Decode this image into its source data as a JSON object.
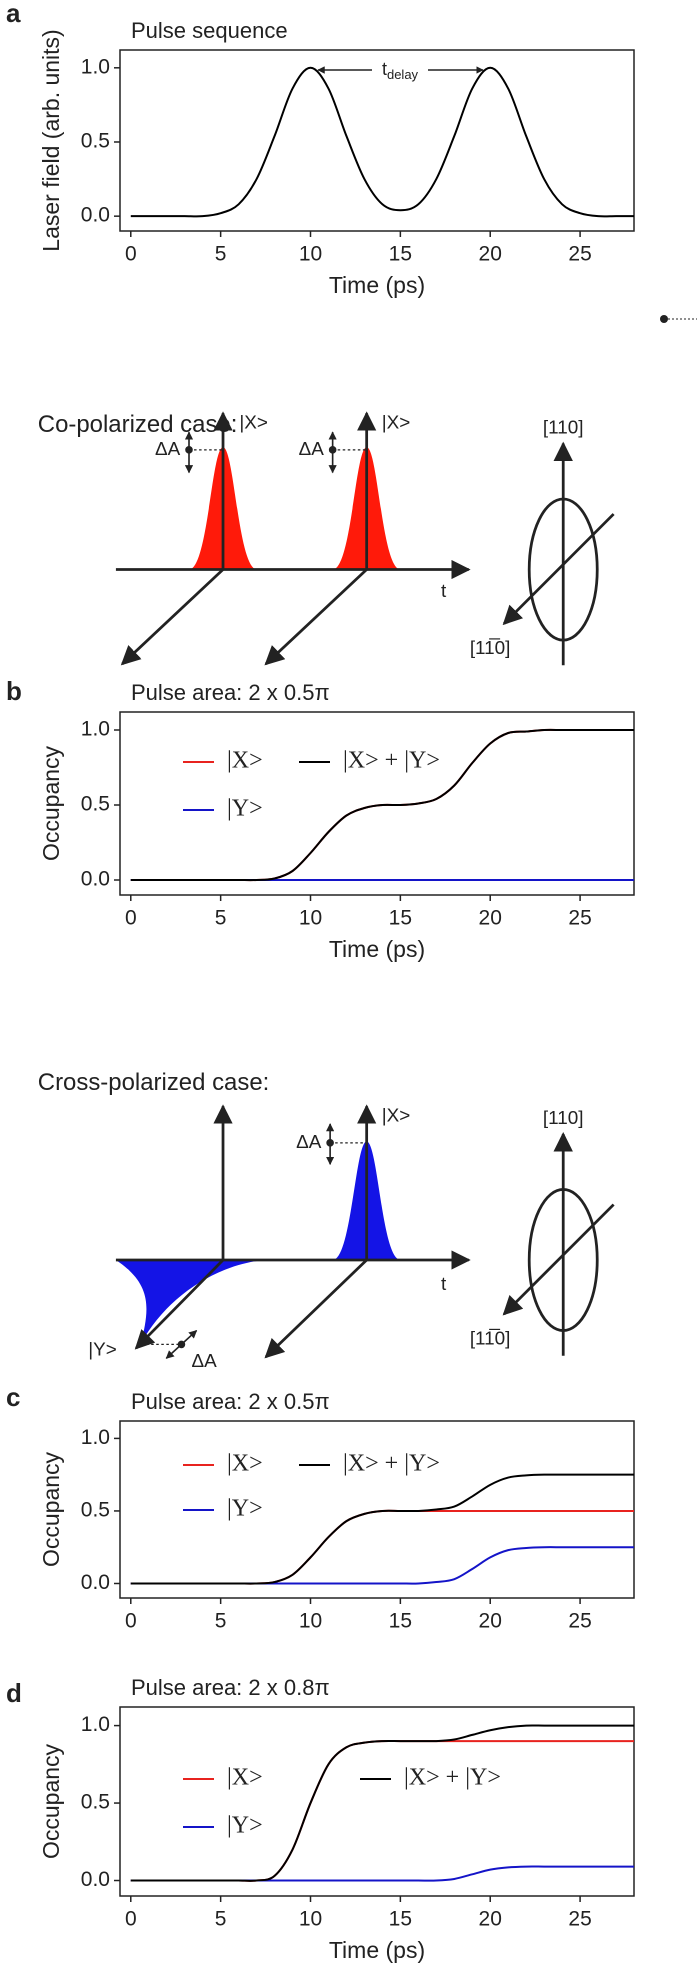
{
  "chart_data": [
    {
      "type": "line",
      "title": "Pulse sequence",
      "xlabel": "Time (ps)",
      "ylabel": "Laser field (arb. units)",
      "annotation": {
        "main": "t",
        "sub": "delay"
      },
      "x": [
        0,
        1,
        2,
        3,
        4,
        5,
        6,
        7,
        8,
        9,
        10,
        11,
        12,
        13,
        14,
        15,
        16,
        17,
        18,
        19,
        20,
        21,
        22,
        23,
        24,
        25,
        26,
        27,
        28
      ],
      "series": [
        {
          "name": null,
          "color": "#000000",
          "values": [
            0,
            0,
            0,
            0,
            0,
            0.02,
            0.08,
            0.25,
            0.54,
            0.86,
            1.0,
            0.86,
            0.54,
            0.25,
            0.08,
            0.04,
            0.08,
            0.25,
            0.54,
            0.86,
            1.0,
            0.86,
            0.54,
            0.25,
            0.08,
            0.02,
            0,
            0,
            0
          ]
        }
      ],
      "xlim": [
        -0.6,
        28
      ],
      "ylim": [
        -0.1,
        1.12
      ],
      "xticks": [
        0,
        5,
        10,
        15,
        20,
        25
      ],
      "yticks": [
        {
          "value": 0,
          "label": "0.0"
        },
        {
          "value": 0.5,
          "label": "0.5"
        },
        {
          "value": 1,
          "label": "1.0"
        }
      ]
    },
    {
      "type": "line",
      "title": "Pulse area: 2 x 0.5π",
      "xlabel": "Time (ps)",
      "ylabel": "Occupancy",
      "x": [
        0,
        1,
        2,
        3,
        4,
        5,
        6,
        7,
        8,
        9,
        10,
        11,
        12,
        13,
        14,
        15,
        16,
        17,
        18,
        19,
        20,
        21,
        22,
        23,
        24,
        25,
        26,
        27,
        28
      ],
      "series": [
        {
          "name": "|X>",
          "color": "#e8231f",
          "values": [
            0,
            0,
            0,
            0,
            0,
            0,
            0,
            0,
            0.01,
            0.06,
            0.18,
            0.32,
            0.43,
            0.48,
            0.5,
            0.5,
            0.51,
            0.54,
            0.63,
            0.78,
            0.91,
            0.98,
            0.99,
            1.0,
            1.0,
            1.0,
            1.0,
            1.0,
            1.0
          ]
        },
        {
          "name": "|Y>",
          "color": "#1414c8",
          "values": [
            0,
            0,
            0,
            0,
            0,
            0,
            0,
            0,
            0,
            0,
            0,
            0,
            0,
            0,
            0,
            0,
            0,
            0,
            0,
            0,
            0,
            0,
            0,
            0,
            0,
            0,
            0,
            0,
            0
          ]
        },
        {
          "name": "|X> + |Y>",
          "color": "#000000",
          "values": [
            0,
            0,
            0,
            0,
            0,
            0,
            0,
            0,
            0.01,
            0.06,
            0.18,
            0.32,
            0.43,
            0.48,
            0.5,
            0.5,
            0.51,
            0.54,
            0.63,
            0.78,
            0.91,
            0.98,
            0.99,
            1.0,
            1.0,
            1.0,
            1.0,
            1.0,
            1.0
          ]
        }
      ],
      "xlim": [
        -0.6,
        28
      ],
      "ylim": [
        -0.1,
        1.12
      ],
      "xticks": [
        0,
        5,
        10,
        15,
        20,
        25
      ],
      "yticks": [
        {
          "value": 0,
          "label": "0.0"
        },
        {
          "value": 0.5,
          "label": "0.5"
        },
        {
          "value": 1,
          "label": "1.0"
        }
      ]
    },
    {
      "type": "line",
      "title": "Pulse area: 2 x 0.5π",
      "ylabel": "Occupancy",
      "x": [
        0,
        1,
        2,
        3,
        4,
        5,
        6,
        7,
        8,
        9,
        10,
        11,
        12,
        13,
        14,
        15,
        16,
        17,
        18,
        19,
        20,
        21,
        22,
        23,
        24,
        25,
        26,
        27,
        28
      ],
      "series": [
        {
          "name": "|X>",
          "color": "#e8231f",
          "values": [
            0,
            0,
            0,
            0,
            0,
            0,
            0,
            0,
            0.01,
            0.06,
            0.18,
            0.32,
            0.43,
            0.48,
            0.5,
            0.5,
            0.5,
            0.5,
            0.5,
            0.5,
            0.5,
            0.5,
            0.5,
            0.5,
            0.5,
            0.5,
            0.5,
            0.5,
            0.5
          ]
        },
        {
          "name": "|Y>",
          "color": "#1414c8",
          "values": [
            0,
            0,
            0,
            0,
            0,
            0,
            0,
            0,
            0,
            0,
            0,
            0,
            0,
            0,
            0,
            0,
            0,
            0.01,
            0.03,
            0.1,
            0.18,
            0.23,
            0.245,
            0.25,
            0.25,
            0.25,
            0.25,
            0.25,
            0.25
          ]
        },
        {
          "name": "|X> + |Y>",
          "color": "#000000",
          "values": [
            0,
            0,
            0,
            0,
            0,
            0,
            0,
            0,
            0.01,
            0.06,
            0.18,
            0.32,
            0.43,
            0.48,
            0.5,
            0.5,
            0.5,
            0.51,
            0.53,
            0.6,
            0.68,
            0.73,
            0.745,
            0.75,
            0.75,
            0.75,
            0.75,
            0.75,
            0.75
          ]
        }
      ],
      "xlim": [
        -0.6,
        28
      ],
      "ylim": [
        -0.1,
        1.12
      ],
      "xticks": [
        0,
        5,
        10,
        15,
        20,
        25
      ],
      "yticks": [
        {
          "value": 0,
          "label": "0.0"
        },
        {
          "value": 0.5,
          "label": "0.5"
        },
        {
          "value": 1,
          "label": "1.0"
        }
      ]
    },
    {
      "type": "line",
      "title": "Pulse area: 2 x 0.8π",
      "xlabel": "Time (ps)",
      "ylabel": "Occupancy",
      "x": [
        0,
        1,
        2,
        3,
        4,
        5,
        6,
        7,
        8,
        9,
        10,
        11,
        12,
        13,
        14,
        15,
        16,
        17,
        18,
        19,
        20,
        21,
        22,
        23,
        24,
        25,
        26,
        27,
        28
      ],
      "series": [
        {
          "name": "|X>",
          "color": "#e8231f",
          "values": [
            0,
            0,
            0,
            0,
            0,
            0,
            0,
            0,
            0.03,
            0.2,
            0.5,
            0.75,
            0.86,
            0.89,
            0.9,
            0.9,
            0.9,
            0.9,
            0.9,
            0.9,
            0.9,
            0.9,
            0.9,
            0.9,
            0.9,
            0.9,
            0.9,
            0.9,
            0.9
          ]
        },
        {
          "name": "|Y>",
          "color": "#1414c8",
          "values": [
            0,
            0,
            0,
            0,
            0,
            0,
            0,
            0,
            0,
            0,
            0,
            0,
            0,
            0,
            0,
            0,
            0,
            0,
            0.01,
            0.04,
            0.07,
            0.085,
            0.09,
            0.09,
            0.09,
            0.09,
            0.09,
            0.09,
            0.09
          ]
        },
        {
          "name": "|X> + |Y>",
          "color": "#000000",
          "values": [
            0,
            0,
            0,
            0,
            0,
            0,
            0,
            0,
            0.03,
            0.2,
            0.5,
            0.75,
            0.86,
            0.89,
            0.9,
            0.9,
            0.9,
            0.9,
            0.91,
            0.94,
            0.97,
            0.99,
            1.0,
            1.0,
            1.0,
            1.0,
            1.0,
            1.0,
            1.0
          ]
        }
      ],
      "xlim": [
        -0.6,
        28
      ],
      "ylim": [
        -0.1,
        1.12
      ],
      "xticks": [
        0,
        5,
        10,
        15,
        20,
        25
      ],
      "yticks": [
        {
          "value": 0,
          "label": "0.0"
        },
        {
          "value": 0.5,
          "label": "0.5"
        },
        {
          "value": 1,
          "label": "1.0"
        }
      ]
    }
  ],
  "panel_labels": [
    "a",
    "b",
    "c",
    "d"
  ],
  "diagrams": [
    {
      "title": "Co-polarized case:",
      "axis_label": "t",
      "state_labels": [
        "|X>",
        "|X>"
      ],
      "delta_labels": [
        "ΔA",
        "ΔA"
      ],
      "crystal_axes": [
        "[110]",
        "[11̅0]"
      ]
    },
    {
      "title": "Cross-polarized case:",
      "axis_label": "t",
      "state_labels": [
        "|X>",
        "|Y>"
      ],
      "delta_labels": [
        "ΔA",
        "ΔA"
      ],
      "crystal_axes": [
        "[110]",
        "[11̅0]"
      ]
    }
  ]
}
